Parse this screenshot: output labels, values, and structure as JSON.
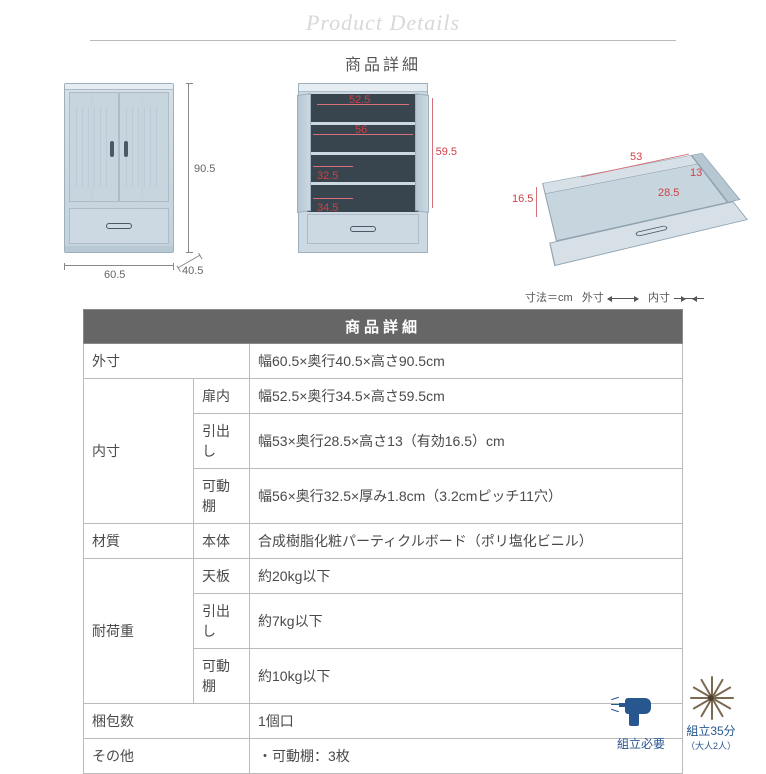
{
  "header": {
    "script_title": "Product Details",
    "subtitle": "商品詳細"
  },
  "diagrams": {
    "cabinet_closed": {
      "width_label": "60.5",
      "depth_label": "40.5",
      "height_label": "90.5",
      "colors": {
        "body": "#cdd9e2",
        "edge": "#9db0bd"
      }
    },
    "cabinet_open": {
      "inner_width_top": "52.5",
      "shelf_width": "56",
      "inner_height": "59.5",
      "shelf_depth": "32.5",
      "bottom_clear": "34.5",
      "inner_color": "#38444e",
      "label_color": "#d04048"
    },
    "drawer": {
      "width": "53",
      "depth": "28.5",
      "inner_h": "13",
      "outer_h": "16.5"
    }
  },
  "legend": {
    "unit": "寸法＝cm",
    "outer": "外寸",
    "inner": "内寸"
  },
  "table": {
    "header": "商品詳細",
    "rows": [
      {
        "label": "外寸",
        "sublabel": "",
        "value": "幅60.5×奥行40.5×高さ90.5cm",
        "rowspan": 1
      },
      {
        "label": "内寸",
        "sublabel": "扉内",
        "value": "幅52.5×奥行34.5×高さ59.5cm",
        "rowspan": 3
      },
      {
        "label": "",
        "sublabel": "引出し",
        "value": "幅53×奥行28.5×高さ13（有効16.5）cm"
      },
      {
        "label": "",
        "sublabel": "可動棚",
        "value": "幅56×奥行32.5×厚み1.8cm（3.2cmピッチ11穴）"
      },
      {
        "label": "材質",
        "sublabel": "本体",
        "value": "合成樹脂化粧パーティクルボード（ポリ塩化ビニル）",
        "rowspan": 1
      },
      {
        "label": "耐荷重",
        "sublabel": "天板",
        "value": "約20kg以下",
        "rowspan": 3
      },
      {
        "label": "",
        "sublabel": "引出し",
        "value": "約7kg以下"
      },
      {
        "label": "",
        "sublabel": "可動棚",
        "value": "約10kg以下"
      },
      {
        "label": "梱包数",
        "sublabel": "",
        "value": "1個口",
        "rowspan": 1
      },
      {
        "label": "その他",
        "sublabel": "",
        "value": "・可動棚：3枚",
        "rowspan": 1
      }
    ]
  },
  "footer": {
    "assembly": {
      "label": "組立必要"
    },
    "time": {
      "label": "組立35分",
      "sub": "（大人2人）"
    }
  },
  "colors": {
    "table_header_bg": "#666666",
    "table_border": "#bbbbbb",
    "footer_accent": "#28568f",
    "dim_red": "#d04048"
  }
}
